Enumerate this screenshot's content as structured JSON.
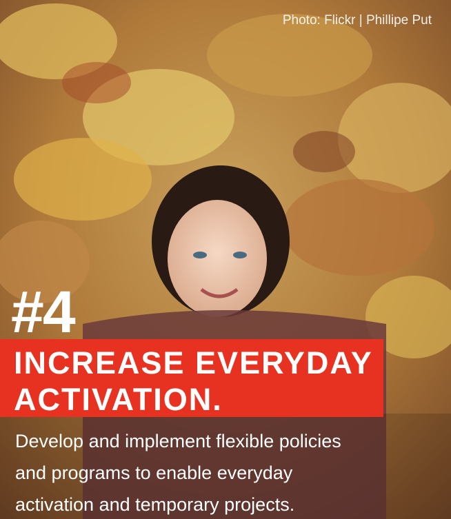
{
  "credit": "Photo: Flickr | Phillipe Put",
  "number": "#4",
  "heading": [
    "INCREASE EVERYDAY",
    "ACTIVATION."
  ],
  "body": [
    "Develop and implement flexible policies",
    "and programs to enable everyday",
    "activation and temporary projects."
  ]
}
